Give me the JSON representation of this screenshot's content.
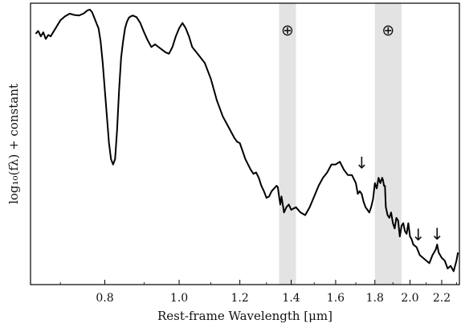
{
  "chart_data": {
    "type": "line",
    "title": "",
    "xlabel": "Rest-frame Wavelength [μm]",
    "ylabel": "log₁₀(fλ) + constant",
    "xscale": "log",
    "xlim": [
      0.64,
      2.32
    ],
    "ylim": [
      0.0,
      1.0
    ],
    "y_ticks_labeled": false,
    "x_ticks": [
      {
        "value": 0.8,
        "label": "0.8"
      },
      {
        "value": 1.0,
        "label": "1.0"
      },
      {
        "value": 1.2,
        "label": "1.2"
      },
      {
        "value": 1.4,
        "label": "1.4"
      },
      {
        "value": 1.6,
        "label": "1.6"
      },
      {
        "value": 1.8,
        "label": "1.8"
      },
      {
        "value": 2.0,
        "label": "2.0"
      },
      {
        "value": 2.2,
        "label": "2.2"
      }
    ],
    "telluric_bands": [
      {
        "x0": 1.35,
        "x1": 1.42,
        "symbol": "⊕",
        "color": "#e3e3e3"
      },
      {
        "x0": 1.8,
        "x1": 1.95,
        "symbol": "⊕",
        "color": "#e3e3e3"
      }
    ],
    "arrows": [
      {
        "x": 1.73,
        "y": 0.405,
        "symbol": "↓"
      },
      {
        "x": 2.05,
        "y": 0.135,
        "symbol": "↓"
      },
      {
        "x": 2.17,
        "y": 0.138,
        "symbol": "↓"
      }
    ],
    "series": [
      {
        "color": "#000000",
        "x": [
          0.65,
          0.655,
          0.66,
          0.665,
          0.67,
          0.675,
          0.68,
          0.69,
          0.7,
          0.71,
          0.72,
          0.73,
          0.74,
          0.75,
          0.76,
          0.765,
          0.77,
          0.775,
          0.78,
          0.785,
          0.79,
          0.795,
          0.8,
          0.805,
          0.81,
          0.815,
          0.82,
          0.825,
          0.83,
          0.835,
          0.84,
          0.845,
          0.85,
          0.855,
          0.86,
          0.865,
          0.87,
          0.88,
          0.89,
          0.9,
          0.91,
          0.92,
          0.93,
          0.94,
          0.95,
          0.96,
          0.97,
          0.98,
          0.99,
          1.0,
          1.01,
          1.02,
          1.03,
          1.04,
          1.06,
          1.08,
          1.1,
          1.12,
          1.14,
          1.16,
          1.18,
          1.19,
          1.2,
          1.21,
          1.22,
          1.24,
          1.25,
          1.26,
          1.27,
          1.28,
          1.29,
          1.3,
          1.31,
          1.32,
          1.33,
          1.34,
          1.345,
          1.35,
          1.355,
          1.36,
          1.365,
          1.37,
          1.38,
          1.39,
          1.4,
          1.42,
          1.44,
          1.46,
          1.48,
          1.5,
          1.52,
          1.54,
          1.56,
          1.58,
          1.6,
          1.62,
          1.64,
          1.66,
          1.68,
          1.7,
          1.71,
          1.72,
          1.73,
          1.74,
          1.75,
          1.76,
          1.77,
          1.78,
          1.79,
          1.8,
          1.81,
          1.82,
          1.83,
          1.84,
          1.845,
          1.85,
          1.855,
          1.86,
          1.87,
          1.88,
          1.89,
          1.9,
          1.91,
          1.92,
          1.93,
          1.94,
          1.95,
          1.96,
          1.97,
          1.98,
          1.99,
          2.0,
          2.01,
          2.02,
          2.04,
          2.06,
          2.08,
          2.1,
          2.12,
          2.14,
          2.16,
          2.17,
          2.18,
          2.2,
          2.22,
          2.24,
          2.26,
          2.28,
          2.3,
          2.31
        ],
        "y": [
          0.91,
          0.92,
          0.9,
          0.915,
          0.89,
          0.905,
          0.9,
          0.93,
          0.96,
          0.975,
          0.985,
          0.98,
          0.978,
          0.985,
          0.998,
          1.0,
          0.99,
          0.97,
          0.95,
          0.93,
          0.88,
          0.8,
          0.7,
          0.6,
          0.5,
          0.44,
          0.42,
          0.44,
          0.55,
          0.7,
          0.82,
          0.88,
          0.93,
          0.955,
          0.97,
          0.975,
          0.978,
          0.972,
          0.95,
          0.915,
          0.885,
          0.86,
          0.87,
          0.86,
          0.85,
          0.84,
          0.835,
          0.86,
          0.9,
          0.93,
          0.95,
          0.93,
          0.9,
          0.86,
          0.83,
          0.8,
          0.74,
          0.66,
          0.6,
          0.56,
          0.52,
          0.505,
          0.5,
          0.47,
          0.44,
          0.4,
          0.385,
          0.39,
          0.37,
          0.34,
          0.32,
          0.295,
          0.3,
          0.32,
          0.33,
          0.34,
          0.335,
          0.3,
          0.27,
          0.3,
          0.27,
          0.24,
          0.26,
          0.27,
          0.25,
          0.26,
          0.24,
          0.23,
          0.26,
          0.3,
          0.34,
          0.37,
          0.39,
          0.42,
          0.42,
          0.43,
          0.4,
          0.38,
          0.38,
          0.35,
          0.31,
          0.32,
          0.31,
          0.28,
          0.26,
          0.25,
          0.24,
          0.26,
          0.29,
          0.35,
          0.33,
          0.37,
          0.35,
          0.37,
          0.36,
          0.34,
          0.34,
          0.26,
          0.23,
          0.22,
          0.24,
          0.2,
          0.18,
          0.22,
          0.21,
          0.15,
          0.19,
          0.2,
          0.17,
          0.16,
          0.2,
          0.15,
          0.14,
          0.12,
          0.11,
          0.08,
          0.07,
          0.06,
          0.05,
          0.08,
          0.1,
          0.12,
          0.09,
          0.07,
          0.06,
          0.03,
          0.04,
          0.02,
          0.06,
          0.09
        ]
      }
    ]
  }
}
